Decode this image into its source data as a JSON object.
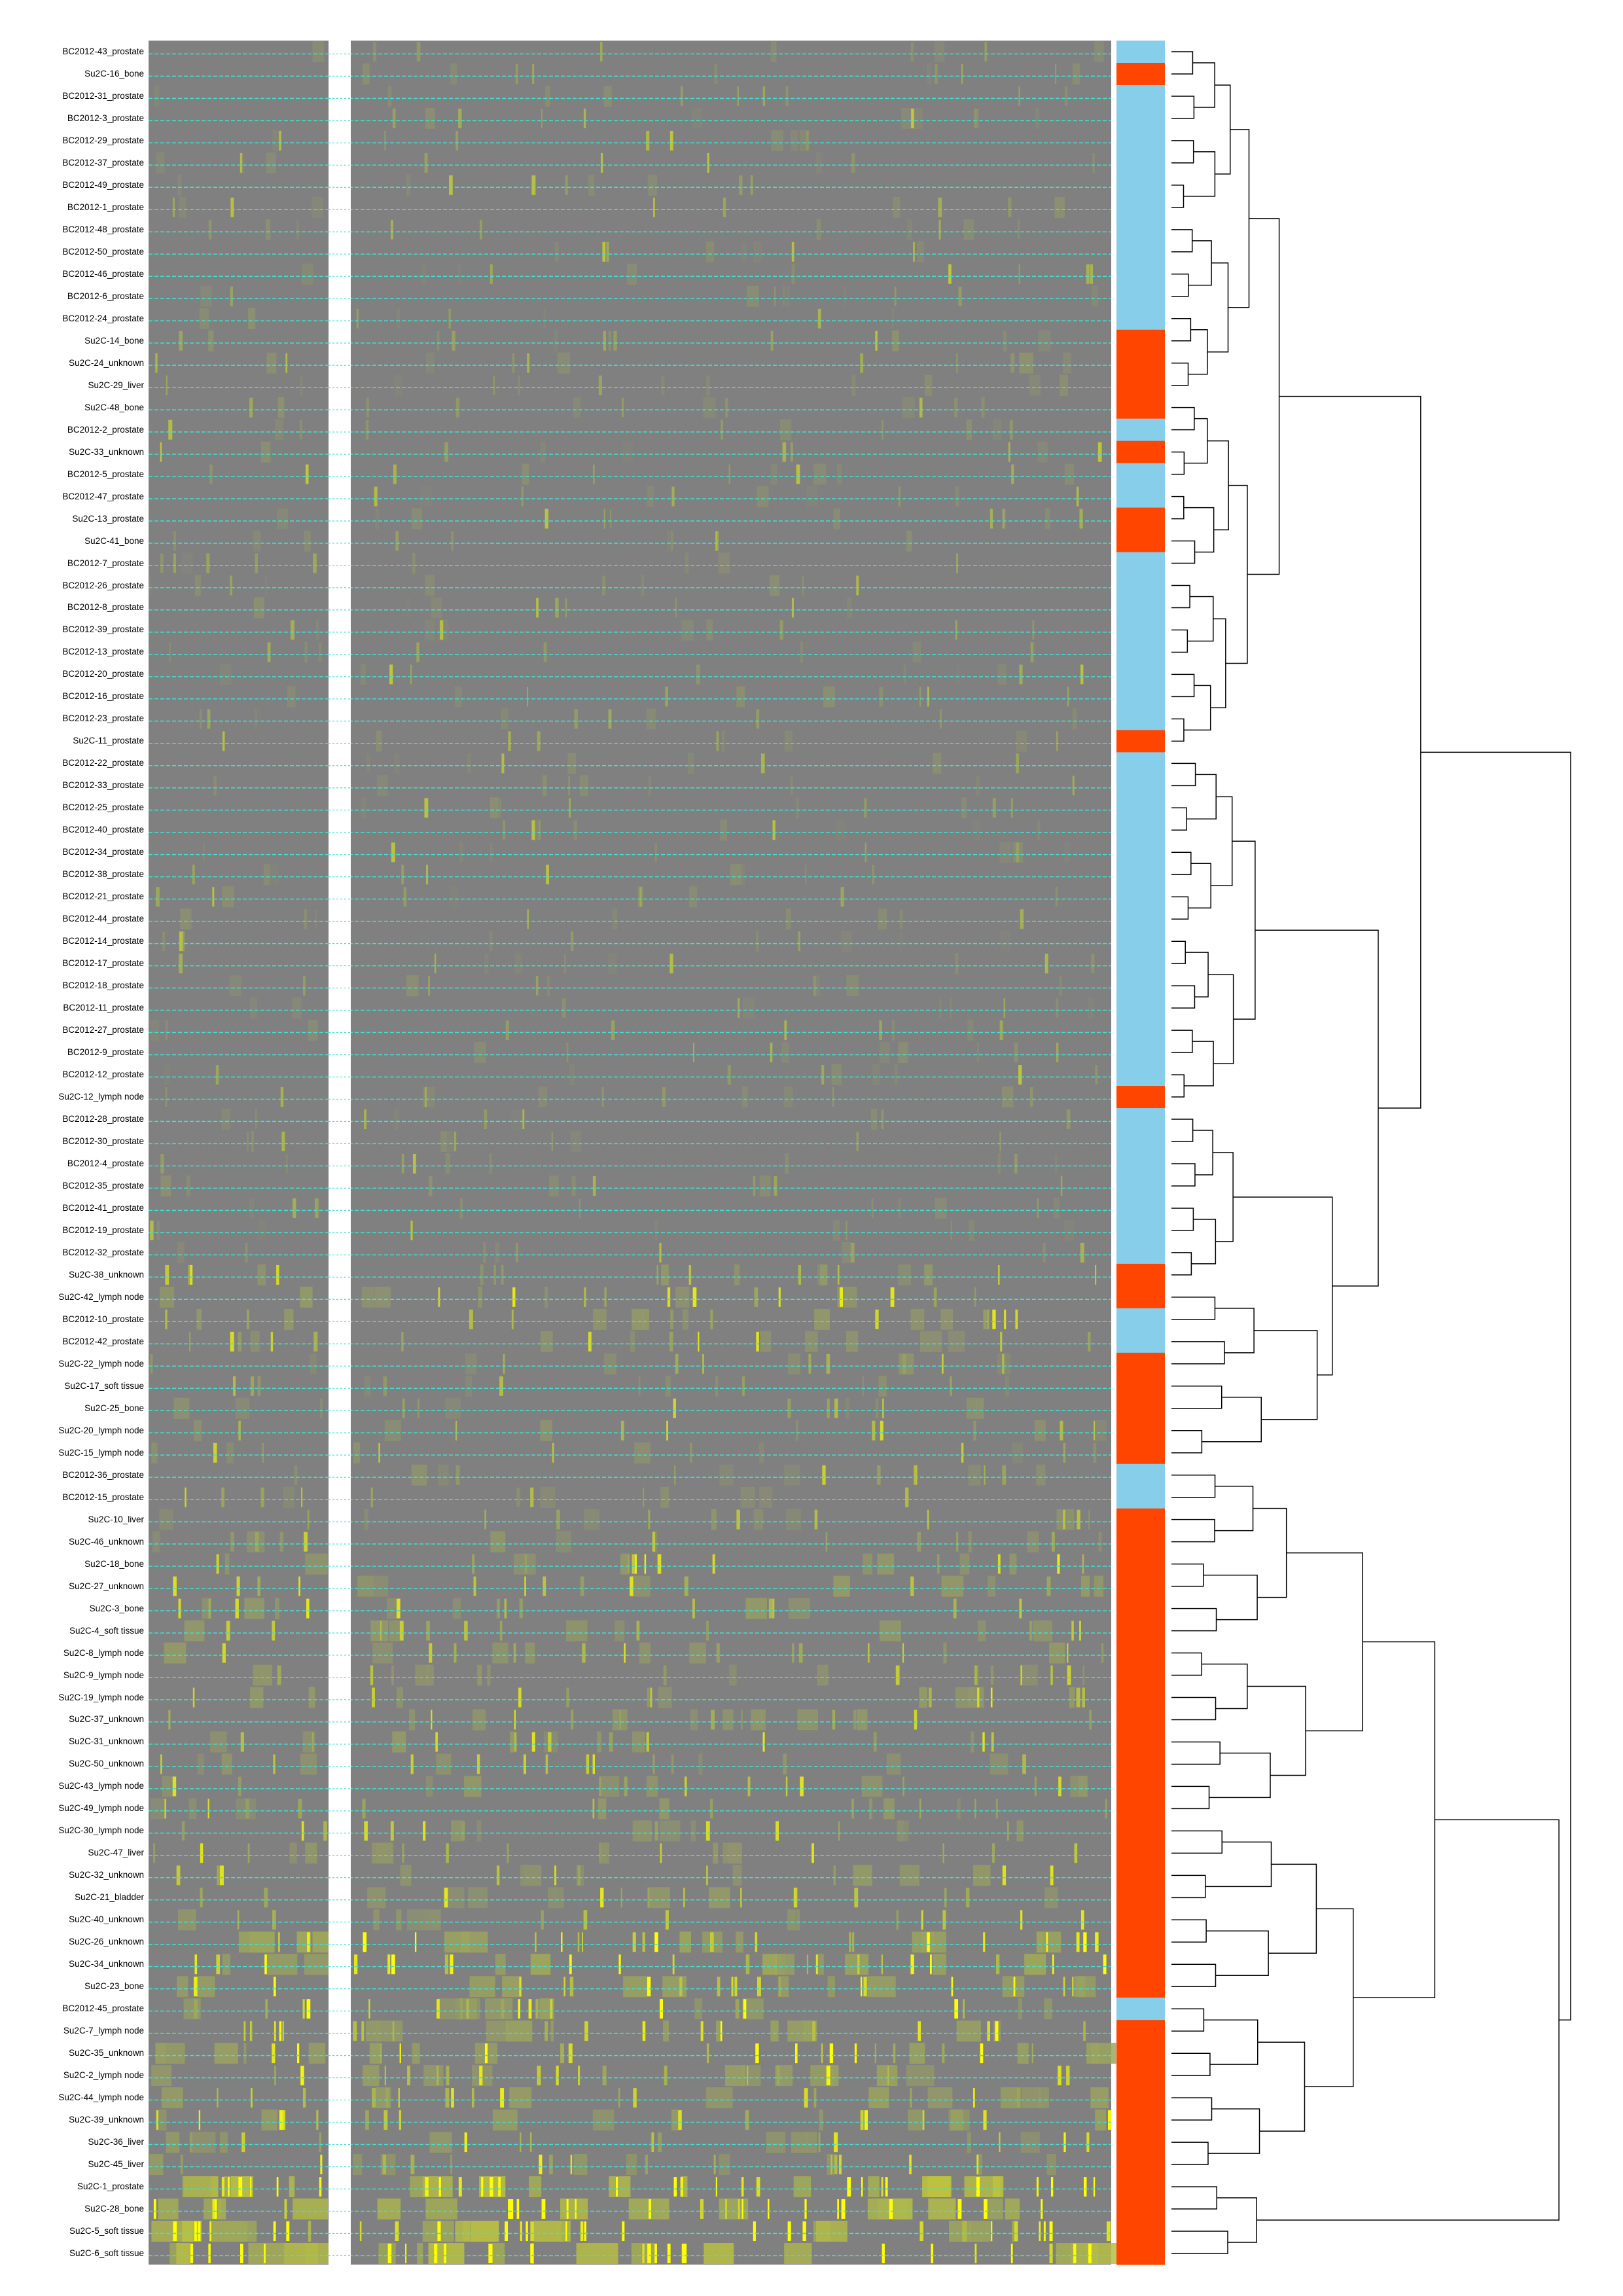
{
  "chart_data": {
    "type": "heatmap",
    "title": "",
    "xlabel": "",
    "ylabel": "",
    "grid": false,
    "legend": "none",
    "row_labels": [
      "BC2012-43_prostate",
      "Su2C-16_bone",
      "BC2012-31_prostate",
      "BC2012-3_prostate",
      "BC2012-29_prostate",
      "BC2012-37_prostate",
      "BC2012-49_prostate",
      "BC2012-1_prostate",
      "BC2012-48_prostate",
      "BC2012-50_prostate",
      "BC2012-46_prostate",
      "BC2012-6_prostate",
      "BC2012-24_prostate",
      "Su2C-14_bone",
      "Su2C-24_unknown",
      "Su2C-29_liver",
      "Su2C-48_bone",
      "BC2012-2_prostate",
      "Su2C-33_unknown",
      "BC2012-5_prostate",
      "BC2012-47_prostate",
      "Su2C-13_prostate",
      "Su2C-41_bone",
      "BC2012-7_prostate",
      "BC2012-26_prostate",
      "BC2012-8_prostate",
      "BC2012-39_prostate",
      "BC2012-13_prostate",
      "BC2012-20_prostate",
      "BC2012-16_prostate",
      "BC2012-23_prostate",
      "Su2C-11_prostate",
      "BC2012-22_prostate",
      "BC2012-33_prostate",
      "BC2012-25_prostate",
      "BC2012-40_prostate",
      "BC2012-34_prostate",
      "BC2012-38_prostate",
      "BC2012-21_prostate",
      "BC2012-44_prostate",
      "BC2012-14_prostate",
      "BC2012-17_prostate",
      "BC2012-18_prostate",
      "BC2012-11_prostate",
      "BC2012-27_prostate",
      "BC2012-9_prostate",
      "BC2012-12_prostate",
      "Su2C-12_lymph node",
      "BC2012-28_prostate",
      "BC2012-30_prostate",
      "BC2012-4_prostate",
      "BC2012-35_prostate",
      "BC2012-41_prostate",
      "BC2012-19_prostate",
      "BC2012-32_prostate",
      "Su2C-38_unknown",
      "Su2C-42_lymph node",
      "BC2012-10_prostate",
      "BC2012-42_prostate",
      "Su2C-22_lymph node",
      "Su2C-17_soft tissue",
      "Su2C-25_bone",
      "Su2C-20_lymph node",
      "Su2C-15_lymph node",
      "BC2012-36_prostate",
      "BC2012-15_prostate",
      "Su2C-10_liver",
      "Su2C-46_unknown",
      "Su2C-18_bone",
      "Su2C-27_unknown",
      "Su2C-3_bone",
      "Su2C-4_soft tissue",
      "Su2C-8_lymph node",
      "Su2C-9_lymph node",
      "Su2C-19_lymph node",
      "Su2C-37_unknown",
      "Su2C-31_unknown",
      "Su2C-50_unknown",
      "Su2C-43_lymph node",
      "Su2C-49_lymph node",
      "Su2C-30_lymph node",
      "Su2C-47_liver",
      "Su2C-32_unknown",
      "Su2C-21_bladder",
      "Su2C-40_unknown",
      "Su2C-26_unknown",
      "Su2C-34_unknown",
      "Su2C-23_bone",
      "BC2012-45_prostate",
      "Su2C-7_lymph node",
      "Su2C-35_unknown",
      "Su2C-2_lymph node",
      "Su2C-44_lymph node",
      "Su2C-39_unknown",
      "Su2C-36_liver",
      "Su2C-45_liver",
      "Su2C-1_prostate",
      "Su2C-28_bone",
      "Su2C-5_soft tissue",
      "Su2C-6_soft tissue"
    ],
    "row_group": [
      "BC2012",
      "Su2C",
      "BC2012",
      "BC2012",
      "BC2012",
      "BC2012",
      "BC2012",
      "BC2012",
      "BC2012",
      "BC2012",
      "BC2012",
      "BC2012",
      "BC2012",
      "Su2C",
      "Su2C",
      "Su2C",
      "Su2C",
      "BC2012",
      "Su2C",
      "BC2012",
      "BC2012",
      "Su2C",
      "Su2C",
      "BC2012",
      "BC2012",
      "BC2012",
      "BC2012",
      "BC2012",
      "BC2012",
      "BC2012",
      "BC2012",
      "Su2C",
      "BC2012",
      "BC2012",
      "BC2012",
      "BC2012",
      "BC2012",
      "BC2012",
      "BC2012",
      "BC2012",
      "BC2012",
      "BC2012",
      "BC2012",
      "BC2012",
      "BC2012",
      "BC2012",
      "BC2012",
      "Su2C",
      "BC2012",
      "BC2012",
      "BC2012",
      "BC2012",
      "BC2012",
      "BC2012",
      "BC2012",
      "Su2C",
      "Su2C",
      "BC2012",
      "BC2012",
      "Su2C",
      "Su2C",
      "Su2C",
      "Su2C",
      "Su2C",
      "BC2012",
      "BC2012",
      "Su2C",
      "Su2C",
      "Su2C",
      "Su2C",
      "Su2C",
      "Su2C",
      "Su2C",
      "Su2C",
      "Su2C",
      "Su2C",
      "Su2C",
      "Su2C",
      "Su2C",
      "Su2C",
      "Su2C",
      "Su2C",
      "Su2C",
      "Su2C",
      "Su2C",
      "Su2C",
      "Su2C",
      "Su2C",
      "BC2012",
      "Su2C",
      "Su2C",
      "Su2C",
      "Su2C",
      "Su2C",
      "Su2C",
      "Su2C",
      "Su2C",
      "Su2C",
      "Su2C",
      "Su2C"
    ],
    "row_intensity": [
      0.08,
      0.08,
      0.07,
      0.09,
      0.08,
      0.07,
      0.07,
      0.08,
      0.07,
      0.07,
      0.08,
      0.07,
      0.07,
      0.12,
      0.12,
      0.1,
      0.1,
      0.08,
      0.08,
      0.09,
      0.07,
      0.1,
      0.08,
      0.07,
      0.07,
      0.07,
      0.07,
      0.07,
      0.07,
      0.07,
      0.07,
      0.07,
      0.07,
      0.07,
      0.06,
      0.06,
      0.07,
      0.07,
      0.08,
      0.07,
      0.07,
      0.07,
      0.07,
      0.07,
      0.06,
      0.07,
      0.06,
      0.1,
      0.07,
      0.06,
      0.06,
      0.06,
      0.06,
      0.06,
      0.06,
      0.25,
      0.3,
      0.3,
      0.28,
      0.18,
      0.15,
      0.15,
      0.18,
      0.16,
      0.15,
      0.15,
      0.2,
      0.2,
      0.3,
      0.3,
      0.3,
      0.28,
      0.3,
      0.25,
      0.28,
      0.28,
      0.28,
      0.26,
      0.28,
      0.26,
      0.26,
      0.28,
      0.3,
      0.3,
      0.28,
      0.55,
      0.55,
      0.5,
      0.45,
      0.5,
      0.5,
      0.45,
      0.45,
      0.4,
      0.35,
      0.35,
      0.8,
      0.7,
      0.75,
      0.75
    ],
    "colors": {
      "bc2012": "#87ceeb",
      "su2c": "#ff4500",
      "heatmap_low": "#808080",
      "heatmap_mid": "#9fa85a",
      "heatmap_high": "#ffff00",
      "row_separator": "#40e0d0",
      "dendrogram": "#000000"
    }
  }
}
